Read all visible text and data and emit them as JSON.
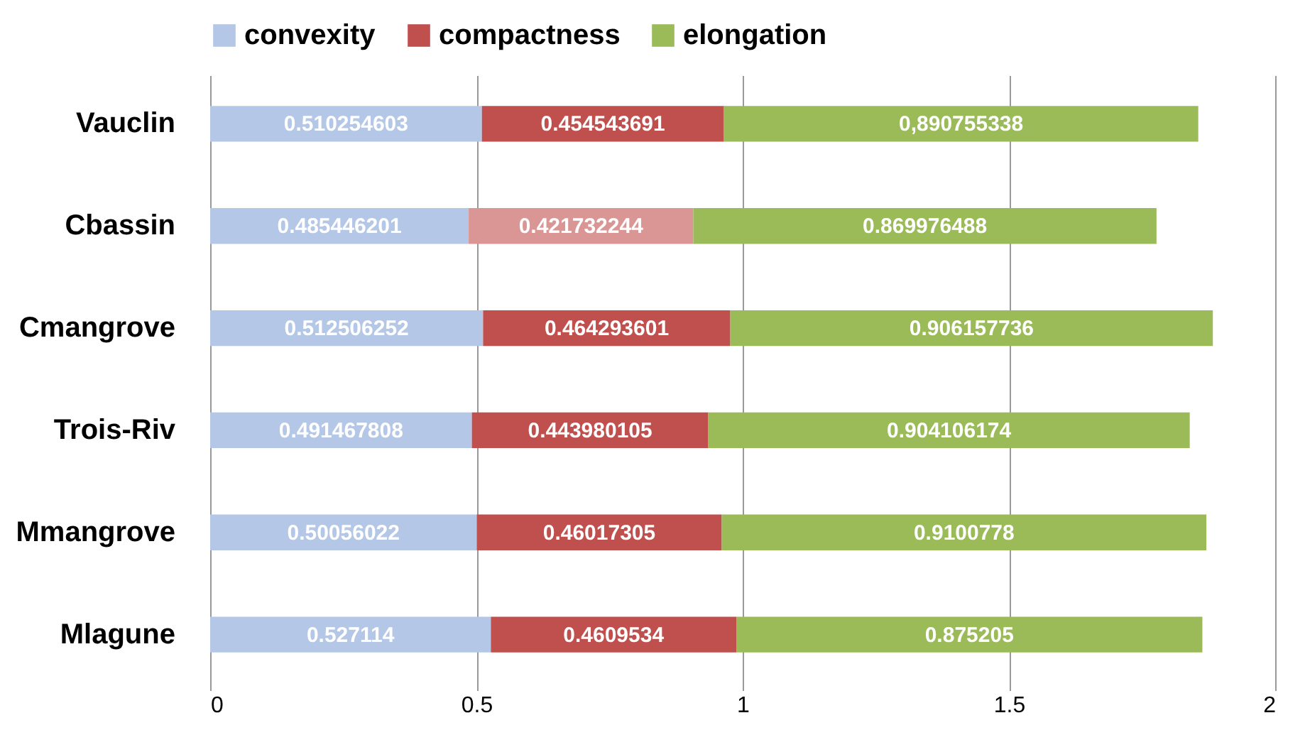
{
  "chart_data": {
    "type": "bar",
    "orientation": "horizontal",
    "stacked": true,
    "categories": [
      "Vauclin",
      "Cbassin",
      "Cmangrove",
      "Trois-Riv",
      "Mmangrove",
      "Mlagune"
    ],
    "series": [
      {
        "name": "convexity",
        "color": "#b4c7e7",
        "values": [
          0.510254603,
          0.485446201,
          0.512506252,
          0.491467808,
          0.50056022,
          0.527114
        ],
        "value_labels": [
          "0.510254603",
          "0.485446201",
          "0.512506252",
          "0.491467808",
          "0.50056022",
          "0.527114"
        ]
      },
      {
        "name": "compactness",
        "color": "#c0504d",
        "colors": [
          "#c0504d",
          "#d99694",
          "#c0504d",
          "#c0504d",
          "#c0504d",
          "#c0504d"
        ],
        "values": [
          0.454543691,
          0.421732244,
          0.464293601,
          0.443980105,
          0.46017305,
          0.4609534
        ],
        "value_labels": [
          "0.454543691",
          "0.421732244",
          "0.464293601",
          "0.443980105",
          "0.46017305",
          "0.4609534"
        ]
      },
      {
        "name": "elongation",
        "color": "#9bbb59",
        "values": [
          0.890755338,
          0.869976488,
          0.906157736,
          0.904106174,
          0.9100778,
          0.875205
        ],
        "value_labels": [
          "0,890755338",
          "0.869976488",
          "0.906157736",
          "0.904106174",
          "0.9100778",
          "0.875205"
        ]
      }
    ],
    "xlim": [
      0,
      2
    ],
    "xticks": [
      0,
      0.5,
      1,
      1.5,
      2
    ],
    "grid": "x",
    "legend": "top"
  }
}
